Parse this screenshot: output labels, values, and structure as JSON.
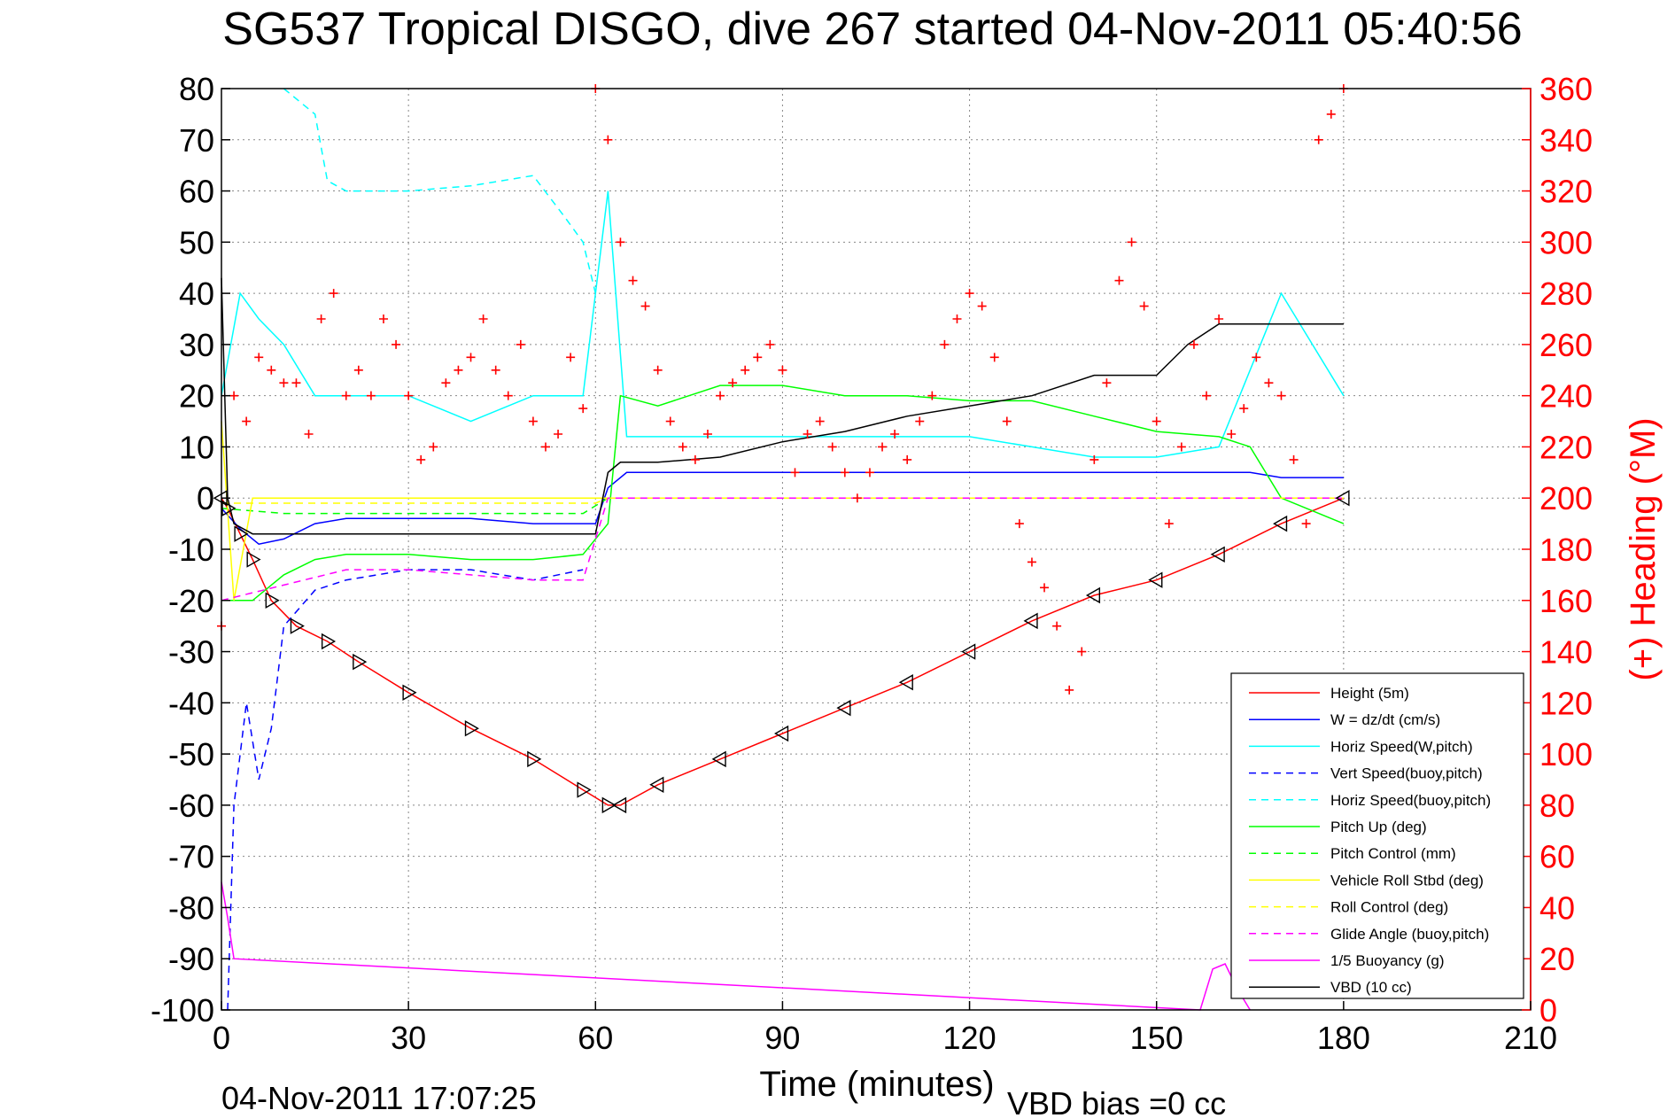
{
  "chart_data": {
    "type": "line",
    "title": "SG537 Tropical DISGO, dive 267 started 04-Nov-2011 05:40:56",
    "xlabel": "Time (minutes)",
    "ylabel_right": "(+) Heading (°M)",
    "xlim": [
      0,
      210
    ],
    "ylim_left": [
      -100,
      80
    ],
    "ylim_right": [
      0,
      360
    ],
    "x_ticks": [
      "0",
      "30",
      "60",
      "90",
      "120",
      "150",
      "180",
      "210"
    ],
    "y_ticks_left": [
      "80",
      "70",
      "60",
      "50",
      "40",
      "30",
      "20",
      "10",
      "0",
      "-10",
      "-20",
      "-30",
      "-40",
      "-50",
      "-60",
      "-70",
      "-80",
      "-90",
      "-100"
    ],
    "y_ticks_right": [
      "360",
      "340",
      "320",
      "300",
      "280",
      "260",
      "240",
      "220",
      "200",
      "180",
      "160",
      "140",
      "120",
      "100",
      "80",
      "60",
      "40",
      "20",
      "0"
    ],
    "grid": true,
    "legend_position": "bottom-right",
    "footer_left": "04-Nov-2011 17:07:25",
    "footer_right": "VBD bias =0 cc",
    "colors": {
      "axis_right": "#ff0000",
      "height": "#ff0000",
      "w": "#0000ff",
      "horiz_speed": "#00ffff",
      "pitch": "#00ff00",
      "roll": "#ffff00",
      "glide": "#ff00ff",
      "vbd": "#000000"
    },
    "series": [
      {
        "name": "Height (5m)",
        "color": "#ff0000",
        "dash": "solid",
        "x": [
          0,
          1,
          3,
          5,
          8,
          12,
          17,
          22,
          30,
          40,
          50,
          58,
          62,
          64,
          70,
          80,
          90,
          100,
          110,
          120,
          130,
          140,
          150,
          160,
          170,
          180
        ],
        "y": [
          0,
          -2,
          -7,
          -12,
          -20,
          -25,
          -28,
          -32,
          -38,
          -45,
          -51,
          -57,
          -60,
          -60,
          -56,
          -51,
          -46,
          -41,
          -36,
          -30,
          -24,
          -19,
          -16,
          -11,
          -5,
          0
        ]
      },
      {
        "name": "W = dz/dt (cm/s)",
        "color": "#0000ff",
        "dash": "solid",
        "x": [
          0,
          3,
          6,
          10,
          15,
          20,
          30,
          40,
          50,
          60,
          62,
          65,
          70,
          80,
          90,
          100,
          110,
          120,
          130,
          140,
          150,
          160,
          165,
          170,
          180
        ],
        "y": [
          -2,
          -6,
          -9,
          -8,
          -5,
          -4,
          -4,
          -4,
          -5,
          -5,
          2,
          5,
          5,
          5,
          5,
          5,
          5,
          5,
          5,
          5,
          5,
          5,
          5,
          4,
          4
        ]
      },
      {
        "name": "Horiz Speed(W,pitch)",
        "color": "#00ffff",
        "dash": "solid",
        "x": [
          0,
          3,
          6,
          10,
          15,
          20,
          30,
          40,
          50,
          58,
          62,
          65,
          70,
          80,
          90,
          100,
          110,
          120,
          130,
          140,
          150,
          160,
          170,
          180
        ],
        "y": [
          20,
          40,
          35,
          30,
          20,
          20,
          20,
          15,
          20,
          20,
          60,
          12,
          12,
          12,
          12,
          12,
          12,
          12,
          10,
          8,
          8,
          10,
          40,
          20
        ]
      },
      {
        "name": "Vert Speed(buoy,pitch)",
        "color": "#0000ff",
        "dash": "dashed",
        "x": [
          1,
          2,
          4,
          6,
          8,
          10,
          15,
          20,
          30,
          40,
          50,
          58
        ],
        "y": [
          -100,
          -60,
          -40,
          -55,
          -45,
          -25,
          -18,
          -16,
          -14,
          -14,
          -16,
          -14
        ]
      },
      {
        "name": "Horiz Speed(buoy,pitch)",
        "color": "#00ffff",
        "dash": "dashed",
        "x": [
          10,
          15,
          17,
          20,
          30,
          40,
          50,
          55,
          58,
          60
        ],
        "y": [
          80,
          75,
          62,
          60,
          60,
          61,
          63,
          55,
          50,
          40
        ]
      },
      {
        "name": "Pitch Up (deg)",
        "color": "#00ff00",
        "dash": "solid",
        "x": [
          0,
          5,
          10,
          15,
          20,
          30,
          40,
          50,
          58,
          62,
          64,
          70,
          80,
          90,
          100,
          110,
          120,
          130,
          140,
          150,
          160,
          165,
          170,
          180
        ],
        "y": [
          -20,
          -20,
          -15,
          -12,
          -11,
          -11,
          -12,
          -12,
          -11,
          -5,
          20,
          18,
          22,
          22,
          20,
          20,
          19,
          19,
          16,
          13,
          12,
          10,
          0,
          -5
        ]
      },
      {
        "name": "Pitch Control (mm)",
        "color": "#00ff00",
        "dash": "dashed",
        "x": [
          0,
          10,
          20,
          30,
          40,
          50,
          58,
          62,
          180
        ],
        "y": [
          -2,
          -3,
          -3,
          -3,
          -3,
          -3,
          -3,
          0,
          0
        ]
      },
      {
        "name": "Vehicle Roll Stbd (deg)",
        "color": "#ffff00",
        "dash": "solid",
        "x": [
          0,
          2,
          5,
          10,
          20,
          40,
          60,
          62,
          70,
          90,
          110,
          130,
          150,
          170,
          180
        ],
        "y": [
          15,
          -20,
          0,
          0,
          0,
          0,
          0,
          0,
          0,
          0,
          0,
          0,
          0,
          0,
          0
        ]
      },
      {
        "name": "Roll Control (deg)",
        "color": "#ffff00",
        "dash": "dashed",
        "x": [
          0,
          10,
          60,
          62,
          180
        ],
        "y": [
          -1,
          -1,
          -1,
          0,
          0
        ]
      },
      {
        "name": "Glide Angle (buoy,pitch)",
        "color": "#ff00ff",
        "dash": "dashed",
        "x": [
          0,
          10,
          20,
          30,
          40,
          50,
          58,
          62,
          180
        ],
        "y": [
          -20,
          -17,
          -14,
          -14,
          -15,
          -16,
          -16,
          0,
          0
        ]
      },
      {
        "name": "1/5 Buoyancy (g)",
        "color": "#ff00ff",
        "dash": "solid",
        "x": [
          0,
          1,
          2,
          157,
          159,
          161,
          163,
          165
        ],
        "y": [
          -75,
          -82,
          -90,
          -100,
          -92,
          -91,
          -96,
          -100
        ]
      },
      {
        "name": "VBD (10 cc)",
        "color": "#000000",
        "dash": "solid",
        "x": [
          0,
          1,
          2,
          5,
          10,
          20,
          30,
          40,
          50,
          60,
          62,
          64,
          70,
          80,
          90,
          100,
          110,
          120,
          130,
          140,
          150,
          155,
          160,
          170,
          180
        ],
        "y": [
          43,
          0,
          -5,
          -7,
          -7,
          -7,
          -7,
          -7,
          -7,
          -7,
          5,
          7,
          7,
          8,
          11,
          13,
          16,
          18,
          20,
          24,
          24,
          30,
          34,
          34,
          34
        ]
      },
      {
        "name": "",
        "color": "#ff0000",
        "marker": "+",
        "axis": "right",
        "x": [
          0,
          2,
          4,
          6,
          8,
          10,
          12,
          14,
          16,
          18,
          20,
          22,
          24,
          26,
          28,
          30,
          32,
          34,
          36,
          38,
          40,
          42,
          44,
          46,
          48,
          50,
          52,
          54,
          56,
          58,
          60,
          62,
          64,
          66,
          68,
          70,
          72,
          74,
          76,
          78,
          80,
          82,
          84,
          86,
          88,
          90,
          92,
          94,
          96,
          98,
          100,
          102,
          104,
          106,
          108,
          110,
          112,
          114,
          116,
          118,
          120,
          122,
          124,
          126,
          128,
          130,
          132,
          134,
          136,
          138,
          140,
          142,
          144,
          146,
          148,
          150,
          152,
          154,
          156,
          158,
          160,
          162,
          164,
          166,
          168,
          170,
          172,
          174,
          176,
          178,
          180
        ],
        "y": [
          150,
          240,
          230,
          255,
          250,
          245,
          245,
          225,
          270,
          280,
          240,
          250,
          240,
          270,
          260,
          240,
          215,
          220,
          245,
          250,
          255,
          270,
          250,
          240,
          260,
          230,
          220,
          225,
          255,
          235,
          360,
          340,
          300,
          285,
          275,
          250,
          230,
          220,
          215,
          225,
          240,
          245,
          250,
          255,
          260,
          250,
          210,
          225,
          230,
          220,
          210,
          200,
          210,
          220,
          225,
          215,
          230,
          240,
          260,
          270,
          280,
          275,
          255,
          230,
          190,
          175,
          165,
          150,
          125,
          140,
          215,
          245,
          285,
          300,
          275,
          230,
          190,
          220,
          260,
          240,
          270,
          225,
          235,
          255,
          245,
          240,
          215,
          190,
          340,
          350,
          360
        ]
      }
    ]
  }
}
